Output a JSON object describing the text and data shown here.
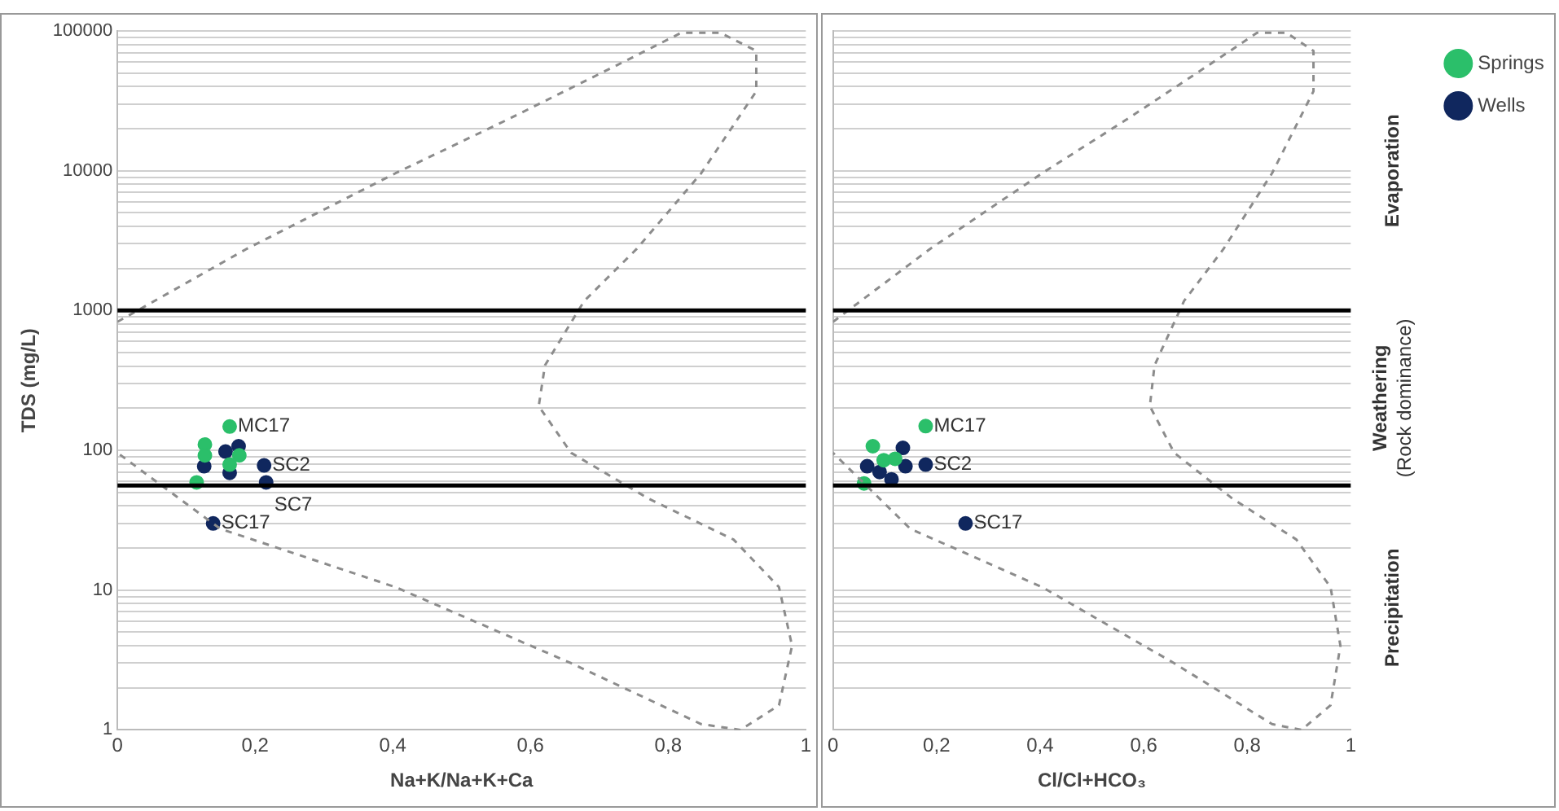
{
  "chart_data": [
    {
      "type": "scatter",
      "xlabel": "Na+K/Na+K+Ca",
      "ylabel": "TDS (mg/L)",
      "xlim": [
        0,
        1
      ],
      "xticks": [
        {
          "value": 0,
          "label": "0"
        },
        {
          "value": 0.2,
          "label": "0,2"
        },
        {
          "value": 0.4,
          "label": "0,4"
        },
        {
          "value": 0.6,
          "label": "0,6"
        },
        {
          "value": 0.8,
          "label": "0,8"
        },
        {
          "value": 1,
          "label": "1"
        }
      ],
      "ylim": [
        1,
        100000
      ],
      "log": "y",
      "yticks": [
        1,
        {
          "value": 2,
          "label": null
        },
        {
          "value": 3,
          "label": null
        },
        {
          "value": 4,
          "label": null
        },
        {
          "value": 5,
          "label": null
        },
        {
          "value": 6,
          "label": null
        },
        {
          "value": 7,
          "label": null
        },
        {
          "value": 8,
          "label": null
        },
        {
          "value": 9,
          "label": null
        },
        10,
        {
          "value": 20,
          "label": null
        },
        {
          "value": 30,
          "label": null
        },
        {
          "value": 40,
          "label": null
        },
        {
          "value": 50,
          "label": null
        },
        {
          "value": 60,
          "label": null
        },
        {
          "value": 70,
          "label": null
        },
        {
          "value": 80,
          "label": null
        },
        {
          "value": 90,
          "label": null
        },
        100,
        {
          "value": 200,
          "label": null
        },
        {
          "value": 300,
          "label": null
        },
        {
          "value": 400,
          "label": null
        },
        {
          "value": 500,
          "label": null
        },
        {
          "value": 600,
          "label": null
        },
        {
          "value": 700,
          "label": null
        },
        {
          "value": 800,
          "label": null
        },
        {
          "value": 900,
          "label": null
        },
        1000,
        {
          "value": 2000,
          "label": null
        },
        {
          "value": 3000,
          "label": null
        },
        {
          "value": 4000,
          "label": null
        },
        {
          "value": 5000,
          "label": null
        },
        {
          "value": 6000,
          "label": null
        },
        {
          "value": 7000,
          "label": null
        },
        {
          "value": 8000,
          "label": null
        },
        {
          "value": 9000,
          "label": null
        },
        10000,
        {
          "value": 20000,
          "label": null
        },
        {
          "value": 30000,
          "label": null
        },
        {
          "value": 40000,
          "label": null
        },
        {
          "value": 50000,
          "label": null
        },
        {
          "value": 60000,
          "label": null
        },
        {
          "value": 70000,
          "label": null
        },
        {
          "value": 80000,
          "label": null
        },
        {
          "value": 90000,
          "label": null
        },
        100000
      ],
      "grid": "y",
      "legend": false,
      "marker": "circle",
      "ref_lines": [
        {
          "axis": "y",
          "value": 1000,
          "color": "#000000"
        },
        {
          "axis": "y",
          "value": 56,
          "color": "#000000"
        }
      ],
      "series": [
        {
          "type": "line",
          "color": "#8c8c8c",
          "line_style": "dashed",
          "marker": "none",
          "x": [
            0,
            0.187,
            0.404,
            0.565,
            0.735,
            0.819,
            0.876,
            0.928,
            0.928,
            0.848,
            0.754,
            0.678,
            0.621,
            0.612,
            0.659,
            0.772,
            0.895,
            0.961,
            0.98,
            0.961,
            0.905,
            0.848,
            0.659,
            0.404,
            0.149,
            0
          ],
          "values": [
            830,
            2750,
            9600,
            23000,
            60000,
            97000,
            97000,
            72000,
            37000,
            9600,
            2750,
            1170,
            405,
            207,
            96,
            45,
            23,
            10.5,
            4,
            1.5,
            1,
            1.1,
            3,
            10.5,
            27.5,
            96
          ]
        },
        {
          "color": "#2bbf6a",
          "x": [
            0.163,
            0.127,
            0.127,
            0.177,
            0.163,
            0.115
          ],
          "values": [
            148,
            110,
            92,
            92,
            79,
            59
          ]
        },
        {
          "color": "#10275e",
          "x": [
            0.213,
            0.216,
            0.139,
            0.157,
            0.176,
            0.126,
            0.163
          ],
          "values": [
            78,
            59,
            30,
            98,
            107,
            77,
            69
          ]
        }
      ],
      "annotations": [
        {
          "text": "MC17",
          "x": 0.163,
          "y": 148
        },
        {
          "text": "SC2",
          "x": 0.213,
          "y": 78
        },
        {
          "text": "SC7",
          "x": 0.216,
          "y": 59
        },
        {
          "text": "SC17",
          "x": 0.139,
          "y": 30
        }
      ]
    },
    {
      "type": "scatter",
      "xlabel": "Cl/Cl+HCO₃",
      "xlim": [
        0,
        1
      ],
      "xticks": [
        {
          "value": 0,
          "label": "0"
        },
        {
          "value": 0.2,
          "label": "0,2"
        },
        {
          "value": 0.4,
          "label": "0,4"
        },
        {
          "value": 0.6,
          "label": "0,6"
        },
        {
          "value": 0.8,
          "label": "0,8"
        },
        {
          "value": 1,
          "label": "1"
        }
      ],
      "ylim": [
        1,
        100000
      ],
      "log": "y",
      "tick_labels": "x",
      "yticks": [
        1,
        {
          "value": 2,
          "label": null
        },
        {
          "value": 3,
          "label": null
        },
        {
          "value": 4,
          "label": null
        },
        {
          "value": 5,
          "label": null
        },
        {
          "value": 6,
          "label": null
        },
        {
          "value": 7,
          "label": null
        },
        {
          "value": 8,
          "label": null
        },
        {
          "value": 9,
          "label": null
        },
        10,
        {
          "value": 20,
          "label": null
        },
        {
          "value": 30,
          "label": null
        },
        {
          "value": 40,
          "label": null
        },
        {
          "value": 50,
          "label": null
        },
        {
          "value": 60,
          "label": null
        },
        {
          "value": 70,
          "label": null
        },
        {
          "value": 80,
          "label": null
        },
        {
          "value": 90,
          "label": null
        },
        100,
        {
          "value": 200,
          "label": null
        },
        {
          "value": 300,
          "label": null
        },
        {
          "value": 400,
          "label": null
        },
        {
          "value": 500,
          "label": null
        },
        {
          "value": 600,
          "label": null
        },
        {
          "value": 700,
          "label": null
        },
        {
          "value": 800,
          "label": null
        },
        {
          "value": 900,
          "label": null
        },
        1000,
        {
          "value": 2000,
          "label": null
        },
        {
          "value": 3000,
          "label": null
        },
        {
          "value": 4000,
          "label": null
        },
        {
          "value": 5000,
          "label": null
        },
        {
          "value": 6000,
          "label": null
        },
        {
          "value": 7000,
          "label": null
        },
        {
          "value": 8000,
          "label": null
        },
        {
          "value": 9000,
          "label": null
        },
        10000,
        {
          "value": 20000,
          "label": null
        },
        {
          "value": 30000,
          "label": null
        },
        {
          "value": 40000,
          "label": null
        },
        {
          "value": 50000,
          "label": null
        },
        {
          "value": 60000,
          "label": null
        },
        {
          "value": 70000,
          "label": null
        },
        {
          "value": 80000,
          "label": null
        },
        {
          "value": 90000,
          "label": null
        },
        100000
      ],
      "grid": "y",
      "legend": "top right",
      "marker": "circle",
      "ref_lines": [
        {
          "axis": "y",
          "value": 1000,
          "color": "#000000"
        },
        {
          "axis": "y",
          "value": 56,
          "color": "#000000"
        }
      ],
      "series": [
        {
          "type": "line",
          "color": "#8c8c8c",
          "line_style": "dashed",
          "marker": "none",
          "x": [
            0,
            0.187,
            0.404,
            0.565,
            0.735,
            0.819,
            0.876,
            0.928,
            0.928,
            0.848,
            0.754,
            0.678,
            0.621,
            0.612,
            0.659,
            0.772,
            0.895,
            0.961,
            0.98,
            0.961,
            0.905,
            0.848,
            0.659,
            0.404,
            0.149,
            0
          ],
          "values": [
            830,
            2750,
            9600,
            23000,
            60000,
            97000,
            97000,
            72000,
            37000,
            9600,
            2750,
            1170,
            405,
            207,
            96,
            45,
            23,
            10.5,
            4,
            1.5,
            1,
            1.1,
            3,
            10.5,
            27.5,
            96
          ]
        },
        {
          "name": "Springs",
          "color": "#2bbf6a",
          "x": [
            0.179,
            0.077,
            0.06,
            0.098,
            0.12
          ],
          "values": [
            149,
            107,
            58,
            85,
            87
          ]
        },
        {
          "name": "Wells",
          "color": "#10275e",
          "x": [
            0.179,
            0.256,
            0.066,
            0.135,
            0.113,
            0.14,
            0.09
          ],
          "values": [
            79,
            30,
            77,
            104,
            62,
            77,
            70
          ]
        }
      ],
      "annotations": [
        "Evaporation",
        "Weathering\n(Rock dominance)",
        "Precipitation",
        {
          "text": "MC17",
          "x": 0.179,
          "y": 149
        },
        {
          "text": "SC2",
          "x": 0.179,
          "y": 79
        },
        {
          "text": "SC17",
          "x": 0.256,
          "y": 30
        }
      ]
    }
  ]
}
